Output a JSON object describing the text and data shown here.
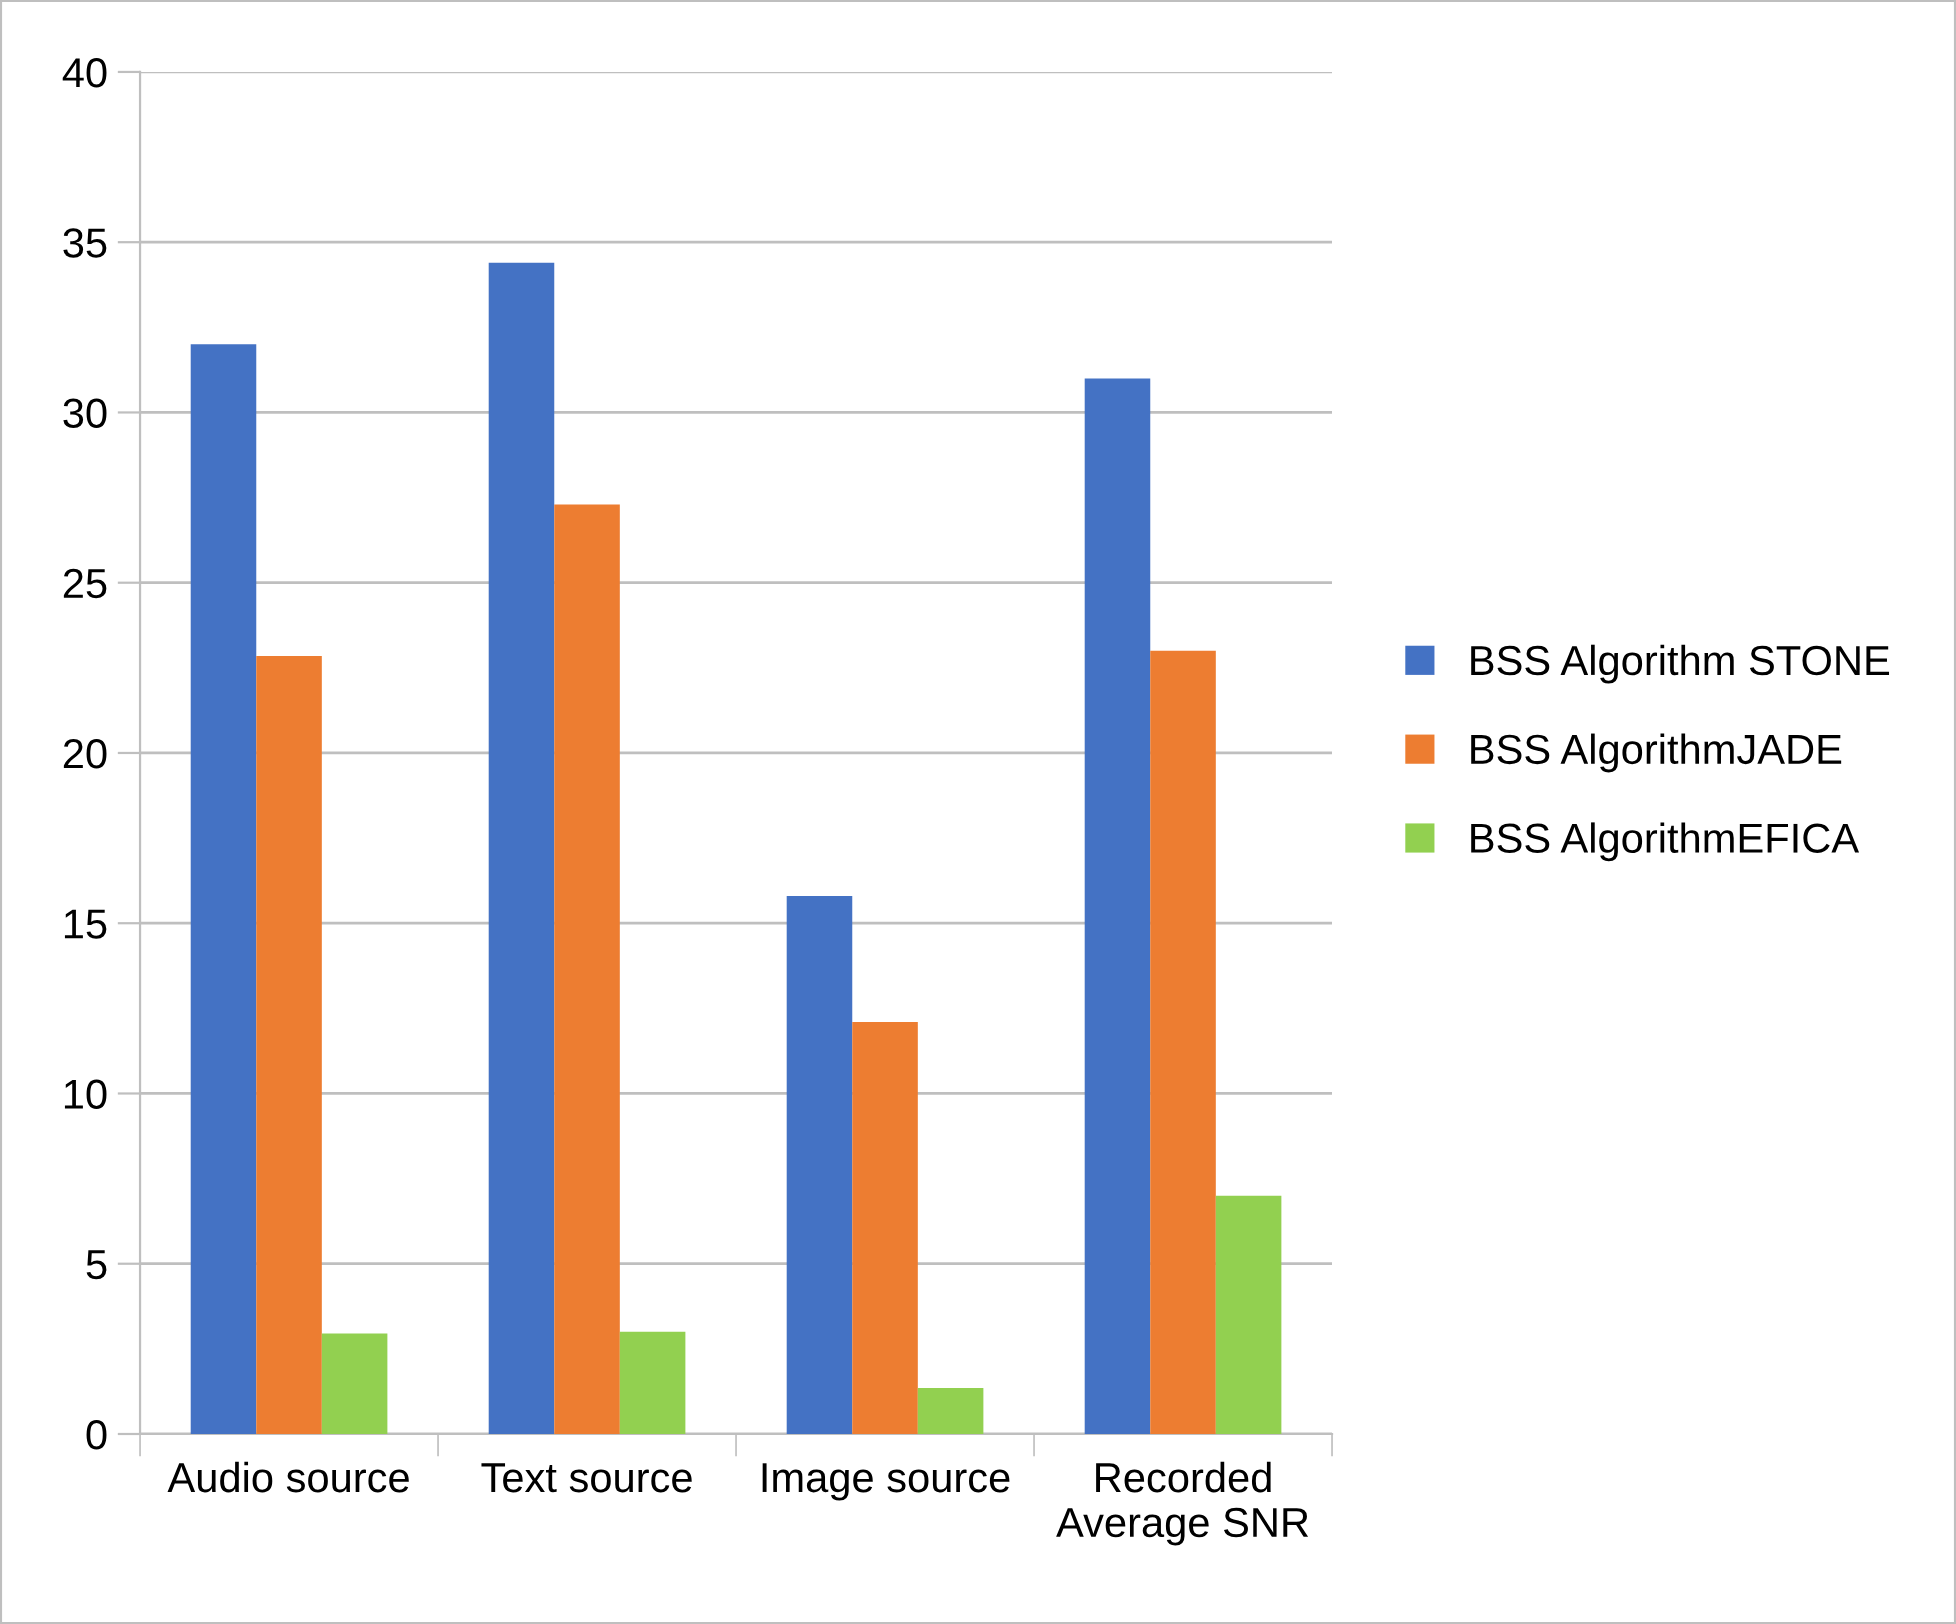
{
  "chart_data": {
    "type": "bar",
    "categories": [
      "Audio source",
      "Text source",
      "Image source",
      "Recorded\nAverage SNR"
    ],
    "series": [
      {
        "name": "BSS Algorithm STONE",
        "color": "#4472c4",
        "values": [
          32.0,
          34.4,
          15.8,
          31.0
        ]
      },
      {
        "name": "BSS AlgorithmJADE",
        "color": "#ed7d31",
        "values": [
          22.85,
          27.3,
          12.1,
          23.0
        ]
      },
      {
        "name": "BSS AlgorithmEFICA",
        "color": "#92d050",
        "values": [
          2.95,
          3.0,
          1.35,
          7.0
        ]
      }
    ],
    "ylim": [
      0,
      40
    ],
    "yticks": [
      0,
      5,
      10,
      15,
      20,
      25,
      30,
      35,
      40
    ],
    "grid": "y",
    "legend": "right"
  }
}
